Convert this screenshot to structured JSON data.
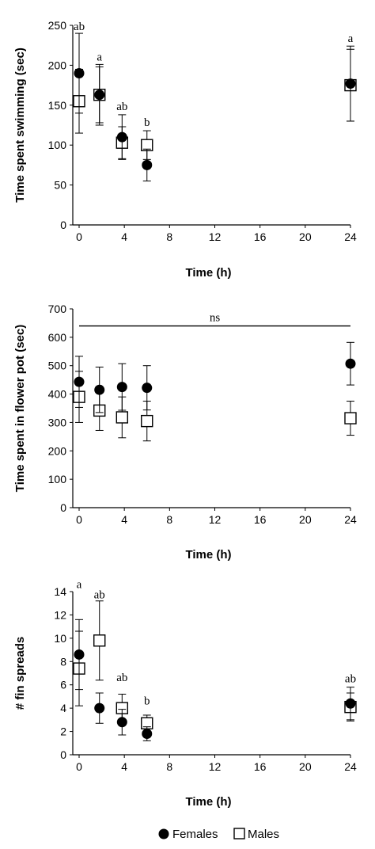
{
  "legend": {
    "females_label": "Females",
    "males_label": "Males"
  },
  "chart_data": [
    {
      "type": "scatter",
      "xlabel": "Time (h)",
      "ylabel": "Time spent swimming (sec)",
      "xlim": [
        0,
        24
      ],
      "ylim": [
        0,
        250
      ],
      "xticks": [
        0,
        4,
        8,
        12,
        16,
        20,
        24
      ],
      "yticks": [
        0,
        50,
        100,
        150,
        200,
        250
      ],
      "series": [
        {
          "name": "Females",
          "marker": "filled-circle",
          "x": [
            0,
            1.8,
            3.8,
            6,
            24
          ],
          "y": [
            190,
            163,
            110,
            75,
            177
          ],
          "err": [
            50,
            38,
            28,
            20,
            47
          ]
        },
        {
          "name": "Males",
          "marker": "open-square",
          "x": [
            0,
            1.8,
            3.8,
            6,
            24
          ],
          "y": [
            155,
            163,
            103,
            100,
            175
          ],
          "err": [
            40,
            35,
            20,
            18,
            45
          ]
        }
      ],
      "annotations": [
        {
          "x": 0,
          "y": 238,
          "text": "ab"
        },
        {
          "x": 1.8,
          "y": 200,
          "text": "a"
        },
        {
          "x": 3.8,
          "y": 138,
          "text": "ab"
        },
        {
          "x": 6,
          "y": 118,
          "text": "b"
        },
        {
          "x": 24,
          "y": 223,
          "text": "a"
        }
      ]
    },
    {
      "type": "scatter",
      "xlabel": "Time (h)",
      "ylabel": "Time spent in flower pot (sec)",
      "xlim": [
        0,
        24
      ],
      "ylim": [
        0,
        700
      ],
      "xticks": [
        0,
        4,
        8,
        12,
        16,
        20,
        24
      ],
      "yticks": [
        0,
        100,
        200,
        300,
        400,
        500,
        600,
        700
      ],
      "series": [
        {
          "name": "Females",
          "marker": "filled-circle",
          "x": [
            0,
            1.8,
            3.8,
            6,
            24
          ],
          "y": [
            443,
            415,
            425,
            422,
            507
          ],
          "err": [
            90,
            80,
            82,
            78,
            75
          ]
        },
        {
          "name": "Males",
          "marker": "open-square",
          "x": [
            0,
            1.8,
            3.8,
            6,
            24
          ],
          "y": [
            390,
            342,
            318,
            305,
            315
          ],
          "err": [
            90,
            70,
            72,
            70,
            60
          ]
        }
      ],
      "significance_line": {
        "x_start": 0,
        "x_end": 24,
        "y": 640,
        "text": "ns"
      }
    },
    {
      "type": "scatter",
      "xlabel": "Time (h)",
      "ylabel": "# fin spreads",
      "xlim": [
        0,
        24
      ],
      "ylim": [
        0,
        14
      ],
      "xticks": [
        0,
        4,
        8,
        12,
        16,
        20,
        24
      ],
      "yticks": [
        0,
        2,
        4,
        6,
        8,
        10,
        12,
        14
      ],
      "series": [
        {
          "name": "Females",
          "marker": "filled-circle",
          "x": [
            0,
            1.8,
            3.8,
            6,
            24
          ],
          "y": [
            8.6,
            4.0,
            2.8,
            1.8,
            4.4
          ],
          "err": [
            3.0,
            1.3,
            1.1,
            0.6,
            1.4
          ]
        },
        {
          "name": "Males",
          "marker": "open-square",
          "x": [
            0,
            1.8,
            3.8,
            6,
            24
          ],
          "y": [
            7.4,
            9.8,
            4.0,
            2.7,
            4.1
          ],
          "err": [
            3.2,
            3.4,
            1.2,
            0.7,
            1.2
          ]
        }
      ],
      "annotations": [
        {
          "x": 0,
          "y": 13.9,
          "text": "a"
        },
        {
          "x": 1.8,
          "y": 13.0,
          "text": "ab"
        },
        {
          "x": 3.8,
          "y": 5.9,
          "text": "ab"
        },
        {
          "x": 6,
          "y": 3.9,
          "text": "b"
        },
        {
          "x": 24,
          "y": 5.8,
          "text": "ab"
        }
      ]
    }
  ]
}
